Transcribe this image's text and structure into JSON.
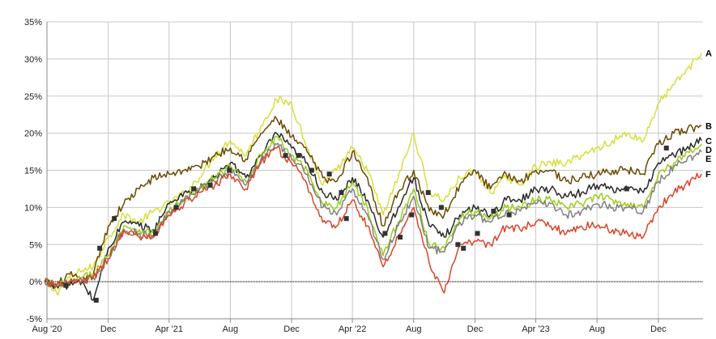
{
  "chart_data": {
    "type": "line",
    "title": "",
    "xlabel": "",
    "ylabel": "",
    "ylim": [
      -5,
      35
    ],
    "y_ticks": [
      "-5%",
      "0%",
      "5%",
      "10%",
      "15%",
      "20%",
      "25%",
      "30%",
      "35%"
    ],
    "y_tick_values": [
      -5,
      0,
      5,
      10,
      15,
      20,
      25,
      30,
      35
    ],
    "x_range": [
      "2020-08-01",
      "2024-02-28"
    ],
    "x_ticks": [
      {
        "label": "Aug '20",
        "date": "2020-08-01"
      },
      {
        "label": "Dec",
        "date": "2020-12-01"
      },
      {
        "label": "Apr '21",
        "date": "2021-04-01"
      },
      {
        "label": "Aug",
        "date": "2021-08-01"
      },
      {
        "label": "Dec",
        "date": "2021-12-01"
      },
      {
        "label": "Apr '22",
        "date": "2022-04-01"
      },
      {
        "label": "Aug",
        "date": "2022-08-01"
      },
      {
        "label": "Dec",
        "date": "2022-12-01"
      },
      {
        "label": "Apr '23",
        "date": "2023-04-01"
      },
      {
        "label": "Aug",
        "date": "2023-08-01"
      },
      {
        "label": "Dec",
        "date": "2023-12-01"
      }
    ],
    "grid": true,
    "zero_line": true,
    "series": [
      {
        "name": "A",
        "color": "#d7df3c",
        "x": [
          "2020-07-27",
          "2020-08-20",
          "2020-09-15",
          "2020-10-10",
          "2020-11-01",
          "2020-12-01",
          "2021-01-01",
          "2021-02-01",
          "2021-03-01",
          "2021-04-01",
          "2021-05-01",
          "2021-06-01",
          "2021-07-01",
          "2021-08-01",
          "2021-09-01",
          "2021-10-01",
          "2021-11-01",
          "2021-12-01",
          "2022-01-01",
          "2022-02-01",
          "2022-03-01",
          "2022-04-01",
          "2022-05-01",
          "2022-06-01",
          "2022-07-01",
          "2022-08-01",
          "2022-09-01",
          "2022-10-01",
          "2022-11-01",
          "2022-12-01",
          "2023-01-01",
          "2023-02-01",
          "2023-03-01",
          "2023-04-01",
          "2023-05-01",
          "2023-06-01",
          "2023-07-01",
          "2023-08-01",
          "2023-09-01",
          "2023-10-01",
          "2023-11-01",
          "2023-12-01",
          "2024-01-01",
          "2024-02-25"
        ],
        "values": [
          0.0,
          -1.5,
          0.5,
          1.5,
          2.0,
          6.0,
          9.0,
          8.0,
          9.5,
          10.5,
          12.0,
          14.0,
          17.0,
          19.0,
          17.0,
          21.0,
          24.5,
          24.0,
          18.0,
          13.0,
          15.0,
          18.0,
          15.0,
          9.0,
          14.0,
          20.0,
          12.0,
          11.0,
          14.0,
          15.0,
          12.0,
          14.0,
          13.0,
          15.5,
          16.0,
          16.0,
          17.0,
          18.0,
          19.0,
          20.0,
          19.0,
          24.0,
          26.5,
          30.8
        ]
      },
      {
        "name": "B",
        "color": "#6b4a04",
        "x": [
          "2020-07-27",
          "2020-08-20",
          "2020-09-15",
          "2020-10-10",
          "2020-11-01",
          "2020-12-01",
          "2021-01-01",
          "2021-02-01",
          "2021-03-01",
          "2021-04-01",
          "2021-05-01",
          "2021-06-01",
          "2021-07-01",
          "2021-08-01",
          "2021-09-01",
          "2021-10-01",
          "2021-11-01",
          "2021-12-01",
          "2022-01-01",
          "2022-02-01",
          "2022-03-01",
          "2022-04-01",
          "2022-05-01",
          "2022-06-01",
          "2022-07-01",
          "2022-08-01",
          "2022-09-01",
          "2022-10-01",
          "2022-11-01",
          "2022-12-01",
          "2023-01-01",
          "2023-02-01",
          "2023-03-01",
          "2023-04-01",
          "2023-05-01",
          "2023-06-01",
          "2023-07-01",
          "2023-08-01",
          "2023-09-01",
          "2023-10-01",
          "2023-11-01",
          "2023-12-01",
          "2024-01-01",
          "2024-02-25"
        ],
        "values": [
          0.0,
          -0.5,
          1.0,
          0.0,
          1.0,
          7.5,
          10.5,
          12.5,
          14.0,
          14.5,
          15.0,
          15.5,
          17.0,
          18.0,
          16.5,
          20.0,
          22.0,
          19.5,
          17.5,
          14.0,
          13.5,
          17.5,
          14.0,
          7.5,
          12.0,
          15.0,
          9.5,
          9.0,
          13.0,
          15.0,
          12.5,
          14.5,
          13.5,
          15.0,
          15.0,
          13.5,
          14.0,
          14.5,
          15.0,
          15.0,
          14.5,
          18.5,
          20.0,
          21.0
        ]
      },
      {
        "name": "C",
        "color": "#2b2b2b",
        "x": [
          "2020-07-27",
          "2020-08-20",
          "2020-09-15",
          "2020-10-10",
          "2020-11-01",
          "2020-12-01",
          "2021-01-01",
          "2021-02-01",
          "2021-03-01",
          "2021-04-01",
          "2021-05-01",
          "2021-06-01",
          "2021-07-01",
          "2021-08-01",
          "2021-09-01",
          "2021-10-01",
          "2021-11-01",
          "2021-12-01",
          "2022-01-01",
          "2022-02-01",
          "2022-03-01",
          "2022-04-01",
          "2022-05-01",
          "2022-06-01",
          "2022-07-01",
          "2022-08-01",
          "2022-09-01",
          "2022-10-01",
          "2022-11-01",
          "2022-12-01",
          "2023-01-01",
          "2023-02-01",
          "2023-03-01",
          "2023-04-01",
          "2023-05-01",
          "2023-06-01",
          "2023-07-01",
          "2023-08-01",
          "2023-09-01",
          "2023-10-01",
          "2023-11-01",
          "2023-12-01",
          "2024-01-01",
          "2024-02-25"
        ],
        "values": [
          0.0,
          -0.5,
          -0.5,
          0.0,
          -2.5,
          4.5,
          8.0,
          7.5,
          7.0,
          10.5,
          12.0,
          12.5,
          14.0,
          16.0,
          14.0,
          17.0,
          20.0,
          18.0,
          16.0,
          12.0,
          11.0,
          14.0,
          11.0,
          6.0,
          10.0,
          14.0,
          7.5,
          6.0,
          9.0,
          10.0,
          9.0,
          11.0,
          11.0,
          12.5,
          12.5,
          11.5,
          12.0,
          13.0,
          12.5,
          12.5,
          12.0,
          16.0,
          17.0,
          19.0
        ]
      },
      {
        "name": "D",
        "color": "#9acd1a",
        "x": [
          "2020-07-27",
          "2020-08-20",
          "2020-09-15",
          "2020-10-10",
          "2020-11-01",
          "2020-12-01",
          "2021-01-01",
          "2021-02-01",
          "2021-03-01",
          "2021-04-01",
          "2021-05-01",
          "2021-06-01",
          "2021-07-01",
          "2021-08-01",
          "2021-09-01",
          "2021-10-01",
          "2021-11-01",
          "2021-12-01",
          "2022-01-01",
          "2022-02-01",
          "2022-03-01",
          "2022-04-01",
          "2022-05-01",
          "2022-06-01",
          "2022-07-01",
          "2022-08-01",
          "2022-09-01",
          "2022-10-01",
          "2022-11-01",
          "2022-12-01",
          "2023-01-01",
          "2023-02-01",
          "2023-03-01",
          "2023-04-01",
          "2023-05-01",
          "2023-06-01",
          "2023-07-01",
          "2023-08-01",
          "2023-09-01",
          "2023-10-01",
          "2023-11-01",
          "2023-12-01",
          "2024-01-01",
          "2024-02-25"
        ],
        "values": [
          0.0,
          -0.5,
          0.0,
          0.5,
          1.0,
          3.5,
          7.5,
          7.0,
          6.5,
          9.5,
          11.0,
          12.5,
          14.0,
          15.5,
          13.5,
          17.0,
          19.5,
          17.0,
          15.0,
          10.5,
          10.0,
          13.5,
          10.0,
          3.5,
          8.0,
          12.5,
          5.0,
          4.5,
          8.5,
          9.5,
          8.5,
          10.0,
          10.0,
          11.0,
          11.0,
          10.0,
          10.5,
          11.5,
          11.0,
          10.5,
          10.0,
          14.5,
          16.0,
          18.5
        ]
      },
      {
        "name": "E",
        "color": "#808080",
        "x": [
          "2020-07-27",
          "2020-08-20",
          "2020-09-15",
          "2020-10-10",
          "2020-11-01",
          "2020-12-01",
          "2021-01-01",
          "2021-02-01",
          "2021-03-01",
          "2021-04-01",
          "2021-05-01",
          "2021-06-01",
          "2021-07-01",
          "2021-08-01",
          "2021-09-01",
          "2021-10-01",
          "2021-11-01",
          "2021-12-01",
          "2022-01-01",
          "2022-02-01",
          "2022-03-01",
          "2022-04-01",
          "2022-05-01",
          "2022-06-01",
          "2022-07-01",
          "2022-08-01",
          "2022-09-01",
          "2022-10-01",
          "2022-11-01",
          "2022-12-01",
          "2023-01-01",
          "2023-02-01",
          "2023-03-01",
          "2023-04-01",
          "2023-05-01",
          "2023-06-01",
          "2023-07-01",
          "2023-08-01",
          "2023-09-01",
          "2023-10-01",
          "2023-11-01",
          "2023-12-01",
          "2024-01-01",
          "2024-02-25"
        ],
        "values": [
          0.0,
          -0.5,
          0.0,
          0.0,
          0.5,
          3.0,
          7.0,
          6.5,
          6.0,
          9.5,
          11.0,
          12.5,
          13.5,
          15.0,
          13.0,
          16.5,
          18.5,
          16.5,
          14.5,
          10.0,
          9.0,
          12.5,
          9.0,
          3.0,
          7.5,
          11.5,
          4.5,
          4.0,
          8.0,
          9.0,
          8.0,
          9.5,
          9.5,
          10.5,
          10.5,
          9.0,
          9.5,
          10.5,
          10.0,
          10.0,
          9.5,
          13.5,
          15.5,
          17.5
        ]
      },
      {
        "name": "F",
        "color": "#d9452a",
        "x": [
          "2020-07-27",
          "2020-08-20",
          "2020-09-15",
          "2020-10-10",
          "2020-11-01",
          "2020-12-01",
          "2021-01-01",
          "2021-02-01",
          "2021-03-01",
          "2021-04-01",
          "2021-05-01",
          "2021-06-01",
          "2021-07-01",
          "2021-08-01",
          "2021-09-01",
          "2021-10-01",
          "2021-11-01",
          "2021-12-01",
          "2022-01-01",
          "2022-02-01",
          "2022-03-01",
          "2022-04-01",
          "2022-05-01",
          "2022-06-01",
          "2022-07-01",
          "2022-08-01",
          "2022-09-01",
          "2022-10-01",
          "2022-11-01",
          "2022-12-01",
          "2023-01-01",
          "2023-02-01",
          "2023-03-01",
          "2023-04-01",
          "2023-05-01",
          "2023-06-01",
          "2023-07-01",
          "2023-08-01",
          "2023-09-01",
          "2023-10-01",
          "2023-11-01",
          "2023-12-01",
          "2024-01-01",
          "2024-02-25"
        ],
        "values": [
          0.0,
          -0.5,
          0.0,
          0.0,
          0.5,
          3.0,
          7.0,
          6.0,
          6.0,
          9.0,
          10.5,
          12.0,
          13.0,
          14.5,
          12.5,
          16.0,
          18.0,
          16.0,
          13.0,
          8.0,
          7.5,
          11.0,
          7.5,
          2.0,
          6.0,
          10.0,
          2.5,
          -1.5,
          5.0,
          5.5,
          5.0,
          7.5,
          7.0,
          8.0,
          7.5,
          6.5,
          7.5,
          7.5,
          7.0,
          6.5,
          6.0,
          10.0,
          12.0,
          14.5
        ]
      }
    ],
    "markers": {
      "color": "#333333",
      "x": [
        "2020-09-08",
        "2020-11-07",
        "2020-11-14",
        "2020-12-13",
        "2021-03-05",
        "2021-04-15",
        "2021-05-20",
        "2021-06-22",
        "2021-07-30",
        "2021-11-19",
        "2021-12-15",
        "2022-01-10",
        "2022-02-14",
        "2022-03-10",
        "2022-03-20",
        "2022-06-05",
        "2022-07-05",
        "2022-07-28",
        "2022-08-30",
        "2022-09-25",
        "2022-10-28",
        "2022-11-08",
        "2022-12-06",
        "2023-01-07",
        "2023-02-07",
        "2023-09-29",
        "2023-12-17"
      ],
      "values": [
        -0.5,
        -2.5,
        4.5,
        8.5,
        6.5,
        10.0,
        12.5,
        13.0,
        15.0,
        17.0,
        17.0,
        15.0,
        14.5,
        12.0,
        8.5,
        6.5,
        6.0,
        9.0,
        12.0,
        10.0,
        5.0,
        4.5,
        6.5,
        9.5,
        9.0,
        12.5,
        18.0
      ]
    }
  }
}
